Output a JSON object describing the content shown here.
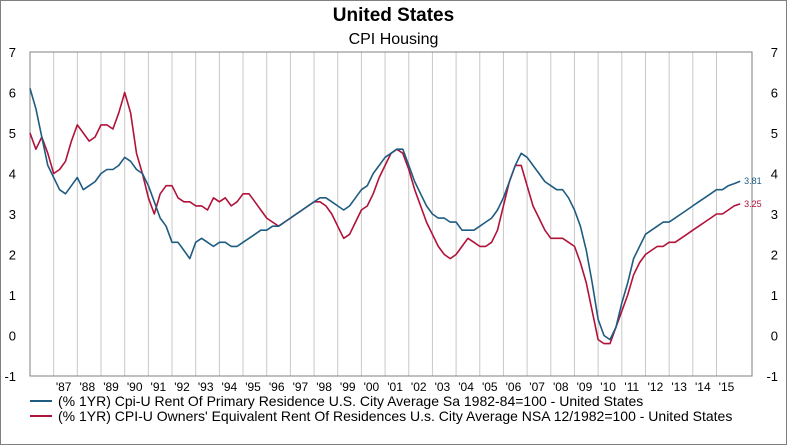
{
  "header": {
    "title": "United States",
    "subtitle": "CPI Housing"
  },
  "chart_data": {
    "type": "line",
    "title": "United States",
    "subtitle": "CPI Housing",
    "xlabel": "",
    "ylabel": "",
    "xlim": [
      1986.0,
      2016.5
    ],
    "ylim": [
      -1,
      7
    ],
    "y_ticks": [
      "-1",
      "0",
      "1",
      "2",
      "3",
      "4",
      "5",
      "6",
      "7"
    ],
    "y_ticks_right": [
      "-1",
      "0",
      "1",
      "2",
      "3",
      "4",
      "5",
      "6",
      "7"
    ],
    "x_ticks": [
      {
        "x": 1987,
        "label": "'87"
      },
      {
        "x": 1988,
        "label": "'88"
      },
      {
        "x": 1989,
        "label": "'89"
      },
      {
        "x": 1990,
        "label": "'90"
      },
      {
        "x": 1991,
        "label": "'91"
      },
      {
        "x": 1992,
        "label": "'92"
      },
      {
        "x": 1993,
        "label": "'93"
      },
      {
        "x": 1994,
        "label": "'94"
      },
      {
        "x": 1995,
        "label": "'95"
      },
      {
        "x": 1996,
        "label": "'96"
      },
      {
        "x": 1997,
        "label": "'97"
      },
      {
        "x": 1998,
        "label": "'98"
      },
      {
        "x": 1999,
        "label": "'99"
      },
      {
        "x": 2000,
        "label": "'00"
      },
      {
        "x": 2001,
        "label": "'01"
      },
      {
        "x": 2002,
        "label": "'02"
      },
      {
        "x": 2003,
        "label": "'03"
      },
      {
        "x": 2004,
        "label": "'04"
      },
      {
        "x": 2005,
        "label": "'05"
      },
      {
        "x": 2006,
        "label": "'06"
      },
      {
        "x": 2007,
        "label": "'07"
      },
      {
        "x": 2008,
        "label": "'08"
      },
      {
        "x": 2009,
        "label": "'09"
      },
      {
        "x": 2010,
        "label": "'10"
      },
      {
        "x": 2011,
        "label": "'11"
      },
      {
        "x": 2012,
        "label": "'12"
      },
      {
        "x": 2013,
        "label": "'13"
      },
      {
        "x": 2014,
        "label": "'14"
      },
      {
        "x": 2015,
        "label": "'15"
      }
    ],
    "grid": {
      "vertical": true,
      "horizontal": false
    },
    "legend_position": "bottom",
    "series": [
      {
        "name": "(% 1YR) Cpi-U Rent Of Primary Residence U.S. City Average Sa 1982-84=100 - United States",
        "color": "#1f5c82",
        "end_label": "3.81",
        "points": [
          [
            1986.0,
            6.1
          ],
          [
            1986.25,
            5.6
          ],
          [
            1986.5,
            4.9
          ],
          [
            1986.75,
            4.2
          ],
          [
            1987.0,
            3.9
          ],
          [
            1987.25,
            3.6
          ],
          [
            1987.5,
            3.5
          ],
          [
            1987.75,
            3.7
          ],
          [
            1988.0,
            3.9
          ],
          [
            1988.25,
            3.6
          ],
          [
            1988.5,
            3.7
          ],
          [
            1988.75,
            3.8
          ],
          [
            1989.0,
            4.0
          ],
          [
            1989.25,
            4.1
          ],
          [
            1989.5,
            4.1
          ],
          [
            1989.75,
            4.2
          ],
          [
            1990.0,
            4.4
          ],
          [
            1990.25,
            4.3
          ],
          [
            1990.5,
            4.1
          ],
          [
            1990.75,
            4.0
          ],
          [
            1991.0,
            3.7
          ],
          [
            1991.25,
            3.3
          ],
          [
            1991.5,
            2.9
          ],
          [
            1991.75,
            2.7
          ],
          [
            1992.0,
            2.3
          ],
          [
            1992.25,
            2.3
          ],
          [
            1992.5,
            2.1
          ],
          [
            1992.75,
            1.9
          ],
          [
            1993.0,
            2.3
          ],
          [
            1993.25,
            2.4
          ],
          [
            1993.5,
            2.3
          ],
          [
            1993.75,
            2.2
          ],
          [
            1994.0,
            2.3
          ],
          [
            1994.25,
            2.3
          ],
          [
            1994.5,
            2.2
          ],
          [
            1994.75,
            2.2
          ],
          [
            1995.0,
            2.3
          ],
          [
            1995.25,
            2.4
          ],
          [
            1995.5,
            2.5
          ],
          [
            1995.75,
            2.6
          ],
          [
            1996.0,
            2.6
          ],
          [
            1996.25,
            2.7
          ],
          [
            1996.5,
            2.7
          ],
          [
            1996.75,
            2.8
          ],
          [
            1997.0,
            2.9
          ],
          [
            1997.25,
            3.0
          ],
          [
            1997.5,
            3.1
          ],
          [
            1997.75,
            3.2
          ],
          [
            1998.0,
            3.3
          ],
          [
            1998.25,
            3.4
          ],
          [
            1998.5,
            3.4
          ],
          [
            1998.75,
            3.3
          ],
          [
            1999.0,
            3.2
          ],
          [
            1999.25,
            3.1
          ],
          [
            1999.5,
            3.2
          ],
          [
            1999.75,
            3.4
          ],
          [
            2000.0,
            3.6
          ],
          [
            2000.25,
            3.7
          ],
          [
            2000.5,
            4.0
          ],
          [
            2000.75,
            4.2
          ],
          [
            2001.0,
            4.4
          ],
          [
            2001.25,
            4.5
          ],
          [
            2001.5,
            4.6
          ],
          [
            2001.75,
            4.6
          ],
          [
            2002.0,
            4.2
          ],
          [
            2002.25,
            3.8
          ],
          [
            2002.5,
            3.5
          ],
          [
            2002.75,
            3.2
          ],
          [
            2003.0,
            3.0
          ],
          [
            2003.25,
            2.9
          ],
          [
            2003.5,
            2.9
          ],
          [
            2003.75,
            2.8
          ],
          [
            2004.0,
            2.8
          ],
          [
            2004.25,
            2.6
          ],
          [
            2004.5,
            2.6
          ],
          [
            2004.75,
            2.6
          ],
          [
            2005.0,
            2.7
          ],
          [
            2005.25,
            2.8
          ],
          [
            2005.5,
            2.9
          ],
          [
            2005.75,
            3.1
          ],
          [
            2006.0,
            3.4
          ],
          [
            2006.25,
            3.8
          ],
          [
            2006.5,
            4.2
          ],
          [
            2006.75,
            4.5
          ],
          [
            2007.0,
            4.4
          ],
          [
            2007.25,
            4.2
          ],
          [
            2007.5,
            4.0
          ],
          [
            2007.75,
            3.8
          ],
          [
            2008.0,
            3.7
          ],
          [
            2008.25,
            3.6
          ],
          [
            2008.5,
            3.6
          ],
          [
            2008.75,
            3.4
          ],
          [
            2009.0,
            3.1
          ],
          [
            2009.25,
            2.7
          ],
          [
            2009.5,
            2.1
          ],
          [
            2009.75,
            1.3
          ],
          [
            2010.0,
            0.4
          ],
          [
            2010.25,
            0.0
          ],
          [
            2010.5,
            -0.1
          ],
          [
            2010.75,
            0.2
          ],
          [
            2011.0,
            0.8
          ],
          [
            2011.25,
            1.3
          ],
          [
            2011.5,
            1.9
          ],
          [
            2011.75,
            2.2
          ],
          [
            2012.0,
            2.5
          ],
          [
            2012.25,
            2.6
          ],
          [
            2012.5,
            2.7
          ],
          [
            2012.75,
            2.8
          ],
          [
            2013.0,
            2.8
          ],
          [
            2013.25,
            2.9
          ],
          [
            2013.5,
            3.0
          ],
          [
            2013.75,
            3.1
          ],
          [
            2014.0,
            3.2
          ],
          [
            2014.25,
            3.3
          ],
          [
            2014.5,
            3.4
          ],
          [
            2014.75,
            3.5
          ],
          [
            2015.0,
            3.6
          ],
          [
            2015.25,
            3.6
          ],
          [
            2015.5,
            3.7
          ],
          [
            2015.75,
            3.75
          ],
          [
            2016.0,
            3.81
          ]
        ]
      },
      {
        "name": "(% 1YR) CPI-U Owners' Equivalent Rent Of Residences U.s. City Average NSA 12/1982=100 - United States",
        "color": "#b0123a",
        "end_label": "3.25",
        "points": [
          [
            1986.0,
            5.0
          ],
          [
            1986.25,
            4.6
          ],
          [
            1986.5,
            4.9
          ],
          [
            1986.75,
            4.5
          ],
          [
            1987.0,
            4.0
          ],
          [
            1987.25,
            4.1
          ],
          [
            1987.5,
            4.3
          ],
          [
            1987.75,
            4.8
          ],
          [
            1988.0,
            5.2
          ],
          [
            1988.25,
            5.0
          ],
          [
            1988.5,
            4.8
          ],
          [
            1988.75,
            4.9
          ],
          [
            1989.0,
            5.2
          ],
          [
            1989.25,
            5.2
          ],
          [
            1989.5,
            5.1
          ],
          [
            1989.75,
            5.5
          ],
          [
            1990.0,
            6.0
          ],
          [
            1990.25,
            5.5
          ],
          [
            1990.5,
            4.5
          ],
          [
            1990.75,
            4.0
          ],
          [
            1991.0,
            3.4
          ],
          [
            1991.25,
            3.0
          ],
          [
            1991.5,
            3.5
          ],
          [
            1991.75,
            3.7
          ],
          [
            1992.0,
            3.7
          ],
          [
            1992.25,
            3.4
          ],
          [
            1992.5,
            3.3
          ],
          [
            1992.75,
            3.3
          ],
          [
            1993.0,
            3.2
          ],
          [
            1993.25,
            3.2
          ],
          [
            1993.5,
            3.1
          ],
          [
            1993.75,
            3.4
          ],
          [
            1994.0,
            3.3
          ],
          [
            1994.25,
            3.4
          ],
          [
            1994.5,
            3.2
          ],
          [
            1994.75,
            3.3
          ],
          [
            1995.0,
            3.5
          ],
          [
            1995.25,
            3.5
          ],
          [
            1995.5,
            3.3
          ],
          [
            1995.75,
            3.1
          ],
          [
            1996.0,
            2.9
          ],
          [
            1996.25,
            2.8
          ],
          [
            1996.5,
            2.7
          ],
          [
            1996.75,
            2.8
          ],
          [
            1997.0,
            2.9
          ],
          [
            1997.25,
            3.0
          ],
          [
            1997.5,
            3.1
          ],
          [
            1997.75,
            3.2
          ],
          [
            1998.0,
            3.3
          ],
          [
            1998.25,
            3.3
          ],
          [
            1998.5,
            3.2
          ],
          [
            1998.75,
            3.0
          ],
          [
            1999.0,
            2.7
          ],
          [
            1999.25,
            2.4
          ],
          [
            1999.5,
            2.5
          ],
          [
            1999.75,
            2.8
          ],
          [
            2000.0,
            3.1
          ],
          [
            2000.25,
            3.2
          ],
          [
            2000.5,
            3.5
          ],
          [
            2000.75,
            3.9
          ],
          [
            2001.0,
            4.2
          ],
          [
            2001.25,
            4.5
          ],
          [
            2001.5,
            4.6
          ],
          [
            2001.75,
            4.5
          ],
          [
            2002.0,
            4.1
          ],
          [
            2002.25,
            3.6
          ],
          [
            2002.5,
            3.2
          ],
          [
            2002.75,
            2.8
          ],
          [
            2003.0,
            2.5
          ],
          [
            2003.25,
            2.2
          ],
          [
            2003.5,
            2.0
          ],
          [
            2003.75,
            1.9
          ],
          [
            2004.0,
            2.0
          ],
          [
            2004.25,
            2.2
          ],
          [
            2004.5,
            2.4
          ],
          [
            2004.75,
            2.3
          ],
          [
            2005.0,
            2.2
          ],
          [
            2005.25,
            2.2
          ],
          [
            2005.5,
            2.3
          ],
          [
            2005.75,
            2.6
          ],
          [
            2006.0,
            3.2
          ],
          [
            2006.25,
            3.8
          ],
          [
            2006.5,
            4.2
          ],
          [
            2006.75,
            4.2
          ],
          [
            2007.0,
            3.7
          ],
          [
            2007.25,
            3.2
          ],
          [
            2007.5,
            2.9
          ],
          [
            2007.75,
            2.6
          ],
          [
            2008.0,
            2.4
          ],
          [
            2008.25,
            2.4
          ],
          [
            2008.5,
            2.4
          ],
          [
            2008.75,
            2.3
          ],
          [
            2009.0,
            2.2
          ],
          [
            2009.25,
            1.8
          ],
          [
            2009.5,
            1.3
          ],
          [
            2009.75,
            0.6
          ],
          [
            2010.0,
            -0.1
          ],
          [
            2010.25,
            -0.2
          ],
          [
            2010.5,
            -0.2
          ],
          [
            2010.75,
            0.2
          ],
          [
            2011.0,
            0.6
          ],
          [
            2011.25,
            1.0
          ],
          [
            2011.5,
            1.5
          ],
          [
            2011.75,
            1.8
          ],
          [
            2012.0,
            2.0
          ],
          [
            2012.25,
            2.1
          ],
          [
            2012.5,
            2.2
          ],
          [
            2012.75,
            2.2
          ],
          [
            2013.0,
            2.3
          ],
          [
            2013.25,
            2.3
          ],
          [
            2013.5,
            2.4
          ],
          [
            2013.75,
            2.5
          ],
          [
            2014.0,
            2.6
          ],
          [
            2014.25,
            2.7
          ],
          [
            2014.5,
            2.8
          ],
          [
            2014.75,
            2.9
          ],
          [
            2015.0,
            3.0
          ],
          [
            2015.25,
            3.0
          ],
          [
            2015.5,
            3.1
          ],
          [
            2015.75,
            3.2
          ],
          [
            2016.0,
            3.25
          ]
        ]
      }
    ]
  }
}
